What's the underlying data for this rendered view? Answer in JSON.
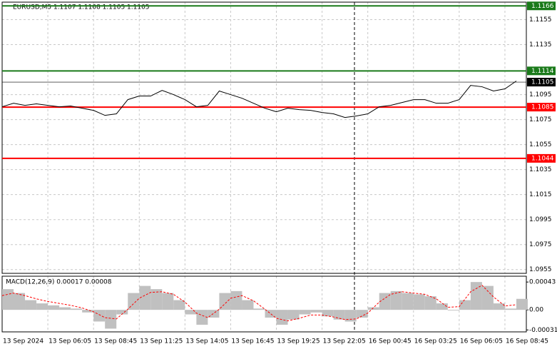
{
  "chart_data": {
    "type": "line",
    "title": "EURUSD,M5  1.1107 1.1108 1.1105 1.1105",
    "xlim": [
      0,
      367
    ],
    "xticks": [
      {
        "value": 0,
        "label": "13 Sep 2024"
      },
      {
        "value": 32,
        "label": "13 Sep 06:05"
      },
      {
        "value": 64,
        "label": "13 Sep 08:45"
      },
      {
        "value": 96,
        "label": "13 Sep 11:25"
      },
      {
        "value": 128,
        "label": "13 Sep 14:05"
      },
      {
        "value": 160,
        "label": "13 Sep 16:45"
      },
      {
        "value": 192,
        "label": "13 Sep 19:25"
      },
      {
        "value": 224,
        "label": "13 Sep 22:05"
      },
      {
        "value": 256,
        "label": "16 Sep 00:45"
      },
      {
        "value": 288,
        "label": "16 Sep 03:25"
      },
      {
        "value": 320,
        "label": "16 Sep 06:05"
      },
      {
        "value": 352,
        "label": "16 Sep 08:45"
      }
    ],
    "x": [
      0,
      8,
      16,
      24,
      32,
      40,
      48,
      56,
      64,
      72,
      80,
      88,
      96,
      104,
      112,
      120,
      128,
      136,
      144,
      152,
      160,
      168,
      176,
      184,
      192,
      200,
      208,
      216,
      224,
      232,
      240,
      248,
      256,
      264,
      272,
      280,
      288,
      296,
      304,
      312,
      320,
      328,
      336,
      344,
      352,
      360
    ],
    "ylim": [
      1.0952,
      1.1169
    ],
    "yticks": [
      1.1155,
      1.1135,
      1.1095,
      1.1075,
      1.1055,
      1.1035,
      1.1015,
      1.0995,
      1.0975,
      1.0955
    ],
    "grid": true,
    "series": [
      {
        "color": "#000000",
        "values": [
          1.10853,
          1.10881,
          1.10864,
          1.10876,
          1.10864,
          1.10853,
          1.10859,
          1.10841,
          1.10824,
          1.10784,
          1.10796,
          1.1091,
          1.10939,
          1.10939,
          1.10984,
          1.1095,
          1.1091,
          1.10853,
          1.10864,
          1.10979,
          1.1095,
          1.10921,
          1.10881,
          1.10841,
          1.10813,
          1.10841,
          1.1083,
          1.10824,
          1.10807,
          1.10796,
          1.10767,
          1.10779,
          1.10796,
          1.10853,
          1.10864,
          1.10887,
          1.1091,
          1.1091,
          1.10881,
          1.10881,
          1.1091,
          1.11024,
          1.11013,
          1.10979,
          1.10996,
          1.11059
        ]
      }
    ],
    "levels": [
      {
        "value": 1.1166,
        "color": "#1a7a1a"
      },
      {
        "value": 1.1114,
        "color": "#1a7a1a"
      },
      {
        "value": 1.1105,
        "color": "#000000"
      },
      {
        "value": 1.1085,
        "color": "#ff0000"
      },
      {
        "value": 1.1044,
        "color": "#ff0000"
      }
    ],
    "macd": {
      "label": "MACD(12,26,9) 0.00017 0.00008",
      "ylim": [
        -0.00034,
        0.00052
      ],
      "yticks": [
        0.00043,
        {
          "value": 0,
          "label": "0.00"
        },
        -0.00031
      ],
      "histogram": {
        "color": "#c0c0c0",
        "values": [
          0.00032,
          0.00026,
          0.00015,
          0.0001,
          7e-05,
          4e-05,
          2e-05,
          -4e-05,
          -0.00018,
          -0.00029,
          -7e-05,
          0.00026,
          0.00037,
          0.00032,
          0.00026,
          0.00015,
          -7e-05,
          -0.00023,
          -0.00012,
          0.00026,
          0.00029,
          0.00015,
          2e-05,
          -0.00012,
          -0.00023,
          -0.00015,
          -7e-05,
          -4e-05,
          -0.0001,
          -0.00015,
          -0.00018,
          -0.00012,
          4e-05,
          0.00026,
          0.00029,
          0.00026,
          0.00024,
          0.00021,
          0.0001,
          -1e-05,
          0.00015,
          0.00043,
          0.00037,
          0.0001,
          2e-05,
          0.00017
        ]
      },
      "signal": {
        "color": "#ff0000",
        "values": [
          0.00022,
          0.00026,
          0.00022,
          0.00017,
          0.00013,
          0.0001,
          7e-05,
          3e-05,
          -3e-05,
          -0.00012,
          -0.00014,
          1e-05,
          0.00018,
          0.00027,
          0.00028,
          0.00024,
          0.00012,
          -5e-05,
          -0.00012,
          1e-05,
          0.00018,
          0.00022,
          0.00014,
          1e-05,
          -0.00013,
          -0.00017,
          -0.00013,
          -8e-05,
          -8e-05,
          -0.00011,
          -0.00015,
          -0.00014,
          -5e-05,
          0.00012,
          0.00024,
          0.00028,
          0.00026,
          0.00024,
          0.00017,
          4e-05,
          5e-05,
          0.00028,
          0.00038,
          0.0002,
          6e-05,
          8e-05
        ]
      }
    }
  }
}
